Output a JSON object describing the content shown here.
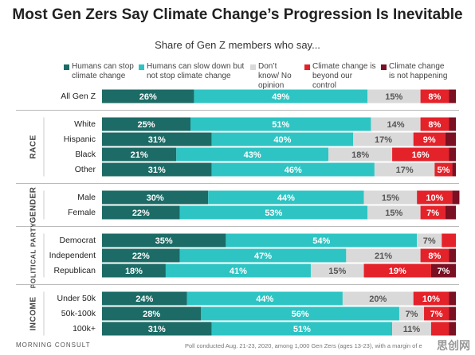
{
  "chart_data": {
    "type": "stacked-bar-horizontal",
    "title": "Most Gen Zers Say Climate Change’s Progression Is Inevitable",
    "subtitle": "Share of Gen Z members who say...",
    "categories": [
      "All Gen Z",
      "White",
      "Hispanic",
      "Black",
      "Other",
      "Male",
      "Female",
      "Democrat",
      "Independent",
      "Republican",
      "Under 50k",
      "50k-100k",
      "100k+"
    ],
    "category_groups": [
      null,
      "RACE",
      "RACE",
      "RACE",
      "RACE",
      "GENDER",
      "GENDER",
      "POLITICAL PARTY",
      "POLITICAL PARTY",
      "POLITICAL PARTY",
      "INCOME",
      "INCOME",
      "INCOME"
    ],
    "xlim": [
      0,
      100
    ],
    "series": [
      {
        "name": "Humans can stop climate change",
        "color": "#1c6b66",
        "label_color": "#ffffff",
        "values": [
          26,
          25,
          31,
          21,
          31,
          30,
          22,
          35,
          22,
          18,
          24,
          28,
          31
        ],
        "value_labels": [
          "26%",
          "25%",
          "31%",
          "21%",
          "31%",
          "30%",
          "22%",
          "35%",
          "22%",
          "18%",
          "24%",
          "28%",
          "31%"
        ]
      },
      {
        "name": "Humans can slow down but not stop climate change",
        "color": "#2ec4c3",
        "label_color": "#ffffff",
        "values": [
          49,
          51,
          40,
          43,
          46,
          44,
          53,
          54,
          47,
          41,
          44,
          56,
          51
        ],
        "value_labels": [
          "49%",
          "51%",
          "40%",
          "43%",
          "46%",
          "44%",
          "53%",
          "54%",
          "47%",
          "41%",
          "44%",
          "56%",
          "51%"
        ]
      },
      {
        "name": "Don’t know/ No opinion",
        "color": "#d9d9d9",
        "label_color": "#555555",
        "values": [
          15,
          14,
          17,
          18,
          17,
          15,
          15,
          7,
          21,
          15,
          20,
          7,
          11
        ],
        "value_labels": [
          "15%",
          "14%",
          "17%",
          "18%",
          "17%",
          "15%",
          "15%",
          "7%",
          "21%",
          "15%",
          "20%",
          "7%",
          "11%"
        ]
      },
      {
        "name": "Climate change is beyond our control",
        "color": "#e4222a",
        "label_color": "#ffffff",
        "values": [
          8,
          8,
          9,
          16,
          5,
          10,
          7,
          4,
          8,
          19,
          10,
          7,
          5
        ],
        "value_labels": [
          "8%",
          "8%",
          "9%",
          "16%",
          "5%",
          "10%",
          "7%",
          null,
          "8%",
          "19%",
          "10%",
          "7%",
          null
        ]
      },
      {
        "name": "Climate change is not happening",
        "color": "#7a1022",
        "label_color": "#ffffff",
        "values": [
          2,
          2,
          3,
          2,
          1,
          2,
          3,
          0,
          2,
          7,
          2,
          2,
          2
        ],
        "value_labels": [
          null,
          null,
          null,
          null,
          null,
          null,
          null,
          null,
          null,
          "7%",
          null,
          null,
          null
        ]
      }
    ],
    "source": "MORNING CONSULT",
    "note": "Poll conducted Aug. 21-23, 2020, among 1,000 Gen Zers (ages 13-23), with a margin of e",
    "watermark": "思创网"
  }
}
